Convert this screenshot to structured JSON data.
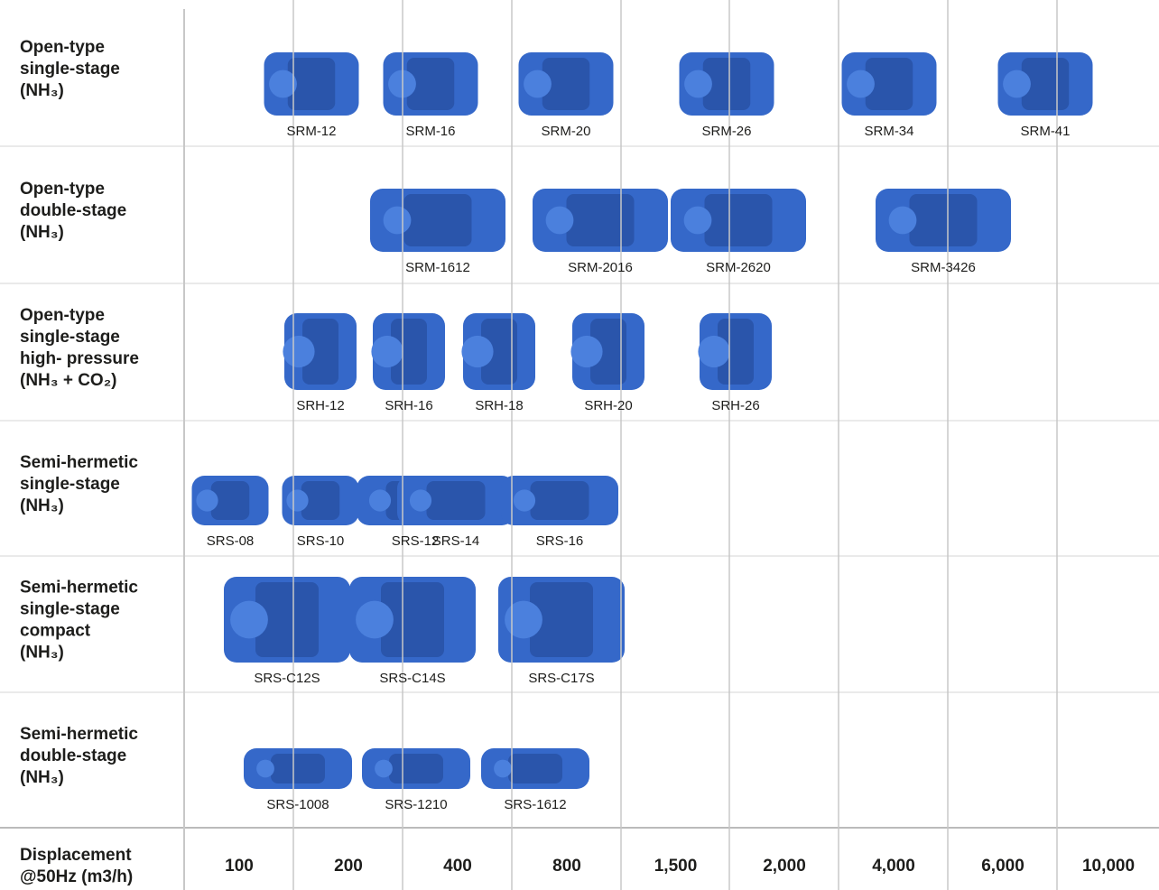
{
  "rows": [
    {
      "label": [
        "Open-type",
        "single-stage",
        "(NH₃)"
      ],
      "models": [
        "SRM-12",
        "SRM-16",
        "SRM-20",
        "SRM-26",
        "SRM-34",
        "SRM-41"
      ]
    },
    {
      "label": [
        "Open-type",
        "double-stage",
        "(NH₃)"
      ],
      "models": [
        "SRM-1612",
        "SRM-2016",
        "SRM-2620",
        "SRM-3426"
      ]
    },
    {
      "label": [
        "Open-type",
        "single-stage",
        "high- pressure",
        "(NH₃ + CO₂)"
      ],
      "models": [
        "SRH-12",
        "SRH-16",
        "SRH-18",
        "SRH-20",
        "SRH-26"
      ]
    },
    {
      "label": [
        "Semi-hermetic",
        "single-stage",
        "(NH₃)"
      ],
      "models": [
        "SRS-08",
        "SRS-10",
        "SRS-12",
        "SRS-14",
        "SRS-16"
      ]
    },
    {
      "label": [
        "Semi-hermetic",
        "single-stage",
        "compact",
        "(NH₃)"
      ],
      "models": [
        "SRS-C12S",
        "SRS-C14S",
        "SRS-C17S"
      ]
    },
    {
      "label": [
        "Semi-hermetic",
        "double-stage",
        "(NH₃)"
      ],
      "models": [
        "SRS-1008",
        "SRS-1210",
        "SRS-1612"
      ]
    }
  ],
  "footer": {
    "label": [
      "Displacement",
      "@50Hz (m3/h)"
    ],
    "values": [
      "100",
      "200",
      "400",
      "800",
      "1,500",
      "2,000",
      "4,000",
      "6,000",
      "10,000"
    ]
  }
}
